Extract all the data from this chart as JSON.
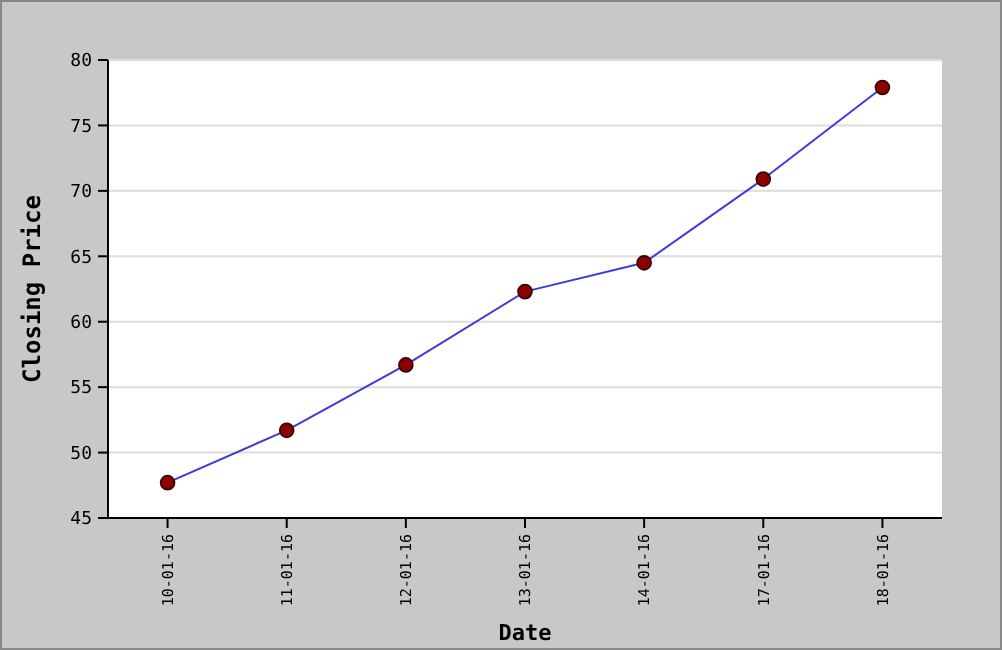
{
  "chart_data": {
    "type": "line",
    "xlabel": "Date",
    "ylabel": "Closing Price",
    "categories": [
      "10-01-16",
      "11-01-16",
      "12-01-16",
      "13-01-16",
      "14-01-16",
      "17-01-16",
      "18-01-16"
    ],
    "series": [
      {
        "color": "#3c3cd8",
        "values": [
          47.7,
          51.7,
          56.7,
          62.3,
          64.5,
          70.9,
          77.9
        ]
      }
    ],
    "marker": "circle",
    "ylim": [
      45,
      80
    ],
    "yticks": [
      45,
      50,
      55,
      60,
      65,
      70,
      75,
      80
    ],
    "grid": "y"
  }
}
